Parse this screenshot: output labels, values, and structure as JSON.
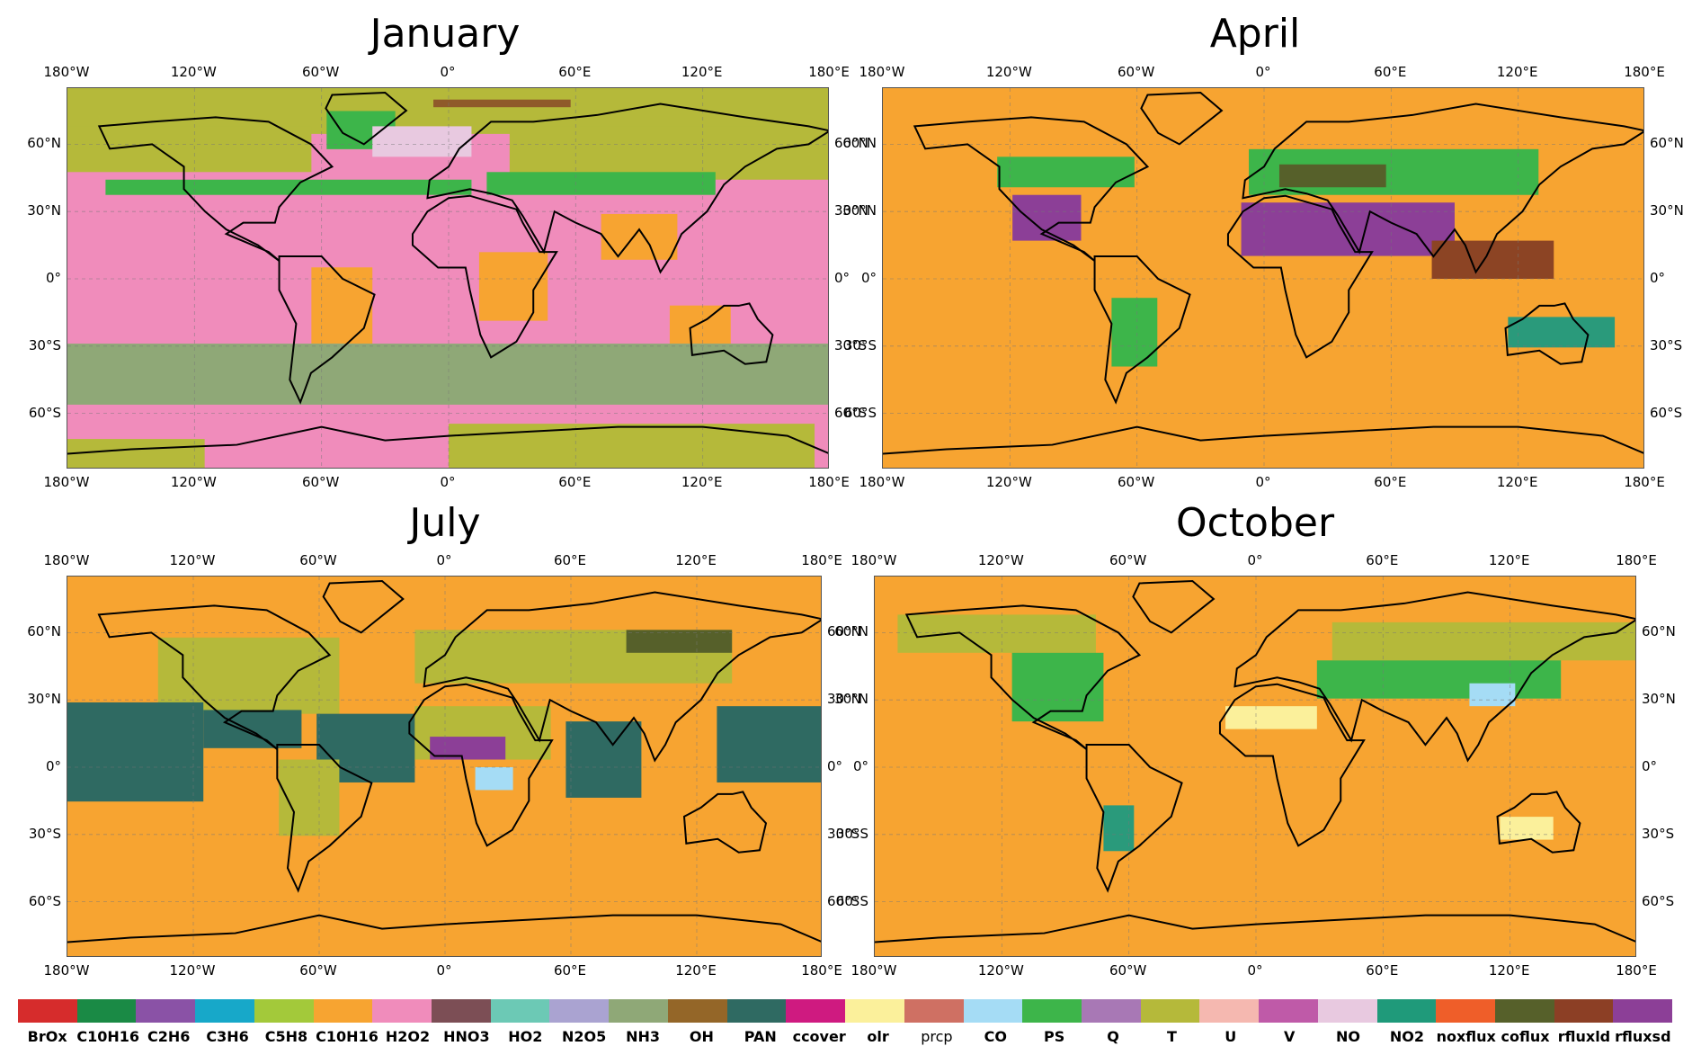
{
  "panels": [
    {
      "id": "jan",
      "title": "January",
      "base": "#f08cbb",
      "blobs": [
        {
          "c": "#b5b93a",
          "x": 0,
          "y": 0,
          "w": 100,
          "h": 12
        },
        {
          "c": "#b5b93a",
          "x": 0,
          "y": 10,
          "w": 32,
          "h": 12
        },
        {
          "c": "#b5b93a",
          "x": 58,
          "y": 10,
          "w": 42,
          "h": 14
        },
        {
          "c": "#3db54a",
          "x": 34,
          "y": 6,
          "w": 9,
          "h": 10
        },
        {
          "c": "#8f5a2a",
          "x": 48,
          "y": 3,
          "w": 18,
          "h": 2
        },
        {
          "c": "#e8c9e0",
          "x": 40,
          "y": 10,
          "w": 13,
          "h": 8
        },
        {
          "c": "#3db54a",
          "x": 5,
          "y": 24,
          "w": 48,
          "h": 4
        },
        {
          "c": "#3db54a",
          "x": 55,
          "y": 22,
          "w": 30,
          "h": 6
        },
        {
          "c": "#f7a431",
          "x": 32,
          "y": 47,
          "w": 8,
          "h": 20
        },
        {
          "c": "#f7a431",
          "x": 54,
          "y": 43,
          "w": 9,
          "h": 18
        },
        {
          "c": "#f7a431",
          "x": 79,
          "y": 57,
          "w": 8,
          "h": 10
        },
        {
          "c": "#f7a431",
          "x": 70,
          "y": 33,
          "w": 10,
          "h": 12
        },
        {
          "c": "#8fa877",
          "x": 0,
          "y": 67,
          "w": 100,
          "h": 16
        },
        {
          "c": "#b5b93a",
          "x": 50,
          "y": 88,
          "w": 48,
          "h": 12
        },
        {
          "c": "#b5b93a",
          "x": 0,
          "y": 92,
          "w": 18,
          "h": 8
        }
      ]
    },
    {
      "id": "apr",
      "title": "April",
      "base": "#f7a431",
      "blobs": [
        {
          "c": "#3db54a",
          "x": 15,
          "y": 18,
          "w": 18,
          "h": 8
        },
        {
          "c": "#8c3f97",
          "x": 17,
          "y": 28,
          "w": 9,
          "h": 12
        },
        {
          "c": "#3db54a",
          "x": 48,
          "y": 16,
          "w": 38,
          "h": 12
        },
        {
          "c": "#56602a",
          "x": 52,
          "y": 20,
          "w": 14,
          "h": 6
        },
        {
          "c": "#8c3f97",
          "x": 47,
          "y": 30,
          "w": 28,
          "h": 14
        },
        {
          "c": "#8c4424",
          "x": 72,
          "y": 40,
          "w": 16,
          "h": 10
        },
        {
          "c": "#2a9a7b",
          "x": 82,
          "y": 60,
          "w": 14,
          "h": 8
        },
        {
          "c": "#3db54a",
          "x": 30,
          "y": 55,
          "w": 6,
          "h": 18
        }
      ]
    },
    {
      "id": "jul",
      "title": "July",
      "base": "#f7a431",
      "blobs": [
        {
          "c": "#b5b93a",
          "x": 12,
          "y": 16,
          "w": 24,
          "h": 20
        },
        {
          "c": "#b5b93a",
          "x": 46,
          "y": 14,
          "w": 42,
          "h": 14
        },
        {
          "c": "#56602a",
          "x": 74,
          "y": 14,
          "w": 14,
          "h": 6
        },
        {
          "c": "#2f6a62",
          "x": 0,
          "y": 33,
          "w": 18,
          "h": 26
        },
        {
          "c": "#2f6a62",
          "x": 18,
          "y": 35,
          "w": 13,
          "h": 10
        },
        {
          "c": "#2f6a62",
          "x": 33,
          "y": 36,
          "w": 13,
          "h": 18
        },
        {
          "c": "#2f6a62",
          "x": 66,
          "y": 38,
          "w": 10,
          "h": 20
        },
        {
          "c": "#2f6a62",
          "x": 86,
          "y": 34,
          "w": 14,
          "h": 20
        },
        {
          "c": "#b5b93a",
          "x": 46,
          "y": 34,
          "w": 18,
          "h": 14
        },
        {
          "c": "#8c3f97",
          "x": 48,
          "y": 42,
          "w": 10,
          "h": 6
        },
        {
          "c": "#a5dcf5",
          "x": 54,
          "y": 50,
          "w": 5,
          "h": 6
        },
        {
          "c": "#b5b93a",
          "x": 28,
          "y": 48,
          "w": 8,
          "h": 20
        }
      ]
    },
    {
      "id": "oct",
      "title": "October",
      "base": "#f7a431",
      "blobs": [
        {
          "c": "#b5b93a",
          "x": 3,
          "y": 10,
          "w": 26,
          "h": 10
        },
        {
          "c": "#b5b93a",
          "x": 60,
          "y": 12,
          "w": 40,
          "h": 10
        },
        {
          "c": "#3db54a",
          "x": 18,
          "y": 20,
          "w": 12,
          "h": 18
        },
        {
          "c": "#3db54a",
          "x": 58,
          "y": 22,
          "w": 32,
          "h": 10
        },
        {
          "c": "#a5dcf5",
          "x": 78,
          "y": 28,
          "w": 6,
          "h": 6
        },
        {
          "c": "#fbf09b",
          "x": 46,
          "y": 34,
          "w": 12,
          "h": 6
        },
        {
          "c": "#fbf09b",
          "x": 82,
          "y": 63,
          "w": 7,
          "h": 6
        },
        {
          "c": "#2a9a7b",
          "x": 30,
          "y": 60,
          "w": 4,
          "h": 12
        }
      ]
    }
  ],
  "ticks": {
    "lon": [
      "180°W",
      "120°W",
      "60°W",
      "0°",
      "60°E",
      "120°E",
      "180°E"
    ],
    "lat": [
      "60°N",
      "30°N",
      "0°",
      "30°S",
      "60°S"
    ]
  },
  "legend": [
    {
      "label": "BrOx",
      "color": "#d62c2c"
    },
    {
      "label": "C10H16",
      "color": "#1a8a45"
    },
    {
      "label": "C2H6",
      "color": "#8a52a6"
    },
    {
      "label": "C3H6",
      "color": "#17a8c9"
    },
    {
      "label": "C5H8",
      "color": "#a3c93a"
    },
    {
      "label": "C10H16",
      "color": "#f7a431"
    },
    {
      "label": "H2O2",
      "color": "#f08cbb"
    },
    {
      "label": "HNO3",
      "color": "#7c4e55"
    },
    {
      "label": "HO2",
      "color": "#6cc9b5"
    },
    {
      "label": "N2O5",
      "color": "#aaa3d1"
    },
    {
      "label": "NH3",
      "color": "#8fa877"
    },
    {
      "label": "OH",
      "color": "#946628"
    },
    {
      "label": "PAN",
      "color": "#2f6a62"
    },
    {
      "label": "ccover",
      "color": "#cf1a80"
    },
    {
      "label": "olr",
      "color": "#fbf09b"
    },
    {
      "label": "prcp",
      "color": "#cf7063",
      "light": true
    },
    {
      "label": "CO",
      "color": "#a5dcf5"
    },
    {
      "label": "PS",
      "color": "#3db54a"
    },
    {
      "label": "Q",
      "color": "#a878b5"
    },
    {
      "label": "T",
      "color": "#b5b93a"
    },
    {
      "label": "U",
      "color": "#f5b8b0"
    },
    {
      "label": "V",
      "color": "#bf5aa8"
    },
    {
      "label": "NO",
      "color": "#e8c9e0"
    },
    {
      "label": "NO2",
      "color": "#1f9a7a"
    },
    {
      "label": "noxflux",
      "color": "#ef5e29"
    },
    {
      "label": "coflux",
      "color": "#56602a"
    },
    {
      "label": "rfluxld",
      "color": "#8c3f25"
    },
    {
      "label": "rfluxsd",
      "color": "#8c3f97"
    }
  ]
}
